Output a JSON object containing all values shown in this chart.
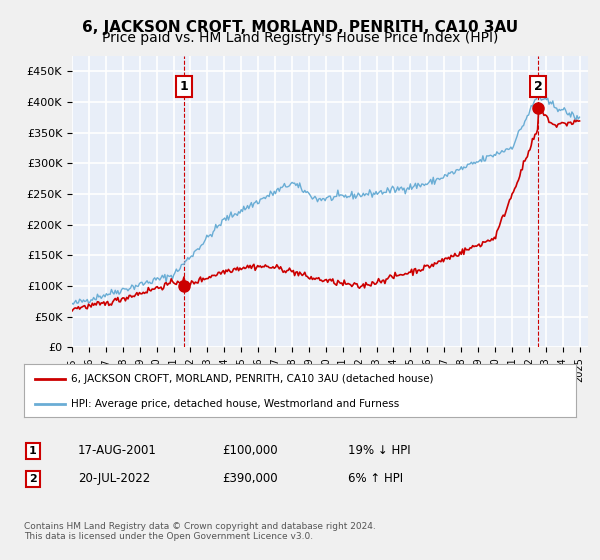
{
  "title": "6, JACKSON CROFT, MORLAND, PENRITH, CA10 3AU",
  "subtitle": "Price paid vs. HM Land Registry's House Price Index (HPI)",
  "ylabel_ticks": [
    "£0",
    "£50K",
    "£100K",
    "£150K",
    "£200K",
    "£250K",
    "£300K",
    "£350K",
    "£400K",
    "£450K"
  ],
  "ytick_values": [
    0,
    50000,
    100000,
    150000,
    200000,
    250000,
    300000,
    350000,
    400000,
    450000
  ],
  "ylim": [
    0,
    475000
  ],
  "xlim_start": 1995.0,
  "xlim_end": 2025.5,
  "background_color": "#f0f0f0",
  "plot_bg_color": "#e8eef8",
  "grid_color": "#ffffff",
  "hpi_color": "#6aadd5",
  "price_color": "#cc0000",
  "marker_color": "#cc0000",
  "transaction1_x": 2001.63,
  "transaction1_y": 100000,
  "transaction2_x": 2022.55,
  "transaction2_y": 390000,
  "legend_line1": "6, JACKSON CROFT, MORLAND, PENRITH, CA10 3AU (detached house)",
  "legend_line2": "HPI: Average price, detached house, Westmorland and Furness",
  "table_row1": [
    "1",
    "17-AUG-2001",
    "£100,000",
    "19% ↓ HPI"
  ],
  "table_row2": [
    "2",
    "20-JUL-2022",
    "£390,000",
    "6% ↑ HPI"
  ],
  "footer": "Contains HM Land Registry data © Crown copyright and database right 2024.\nThis data is licensed under the Open Government Licence v3.0.",
  "title_fontsize": 11,
  "subtitle_fontsize": 10
}
